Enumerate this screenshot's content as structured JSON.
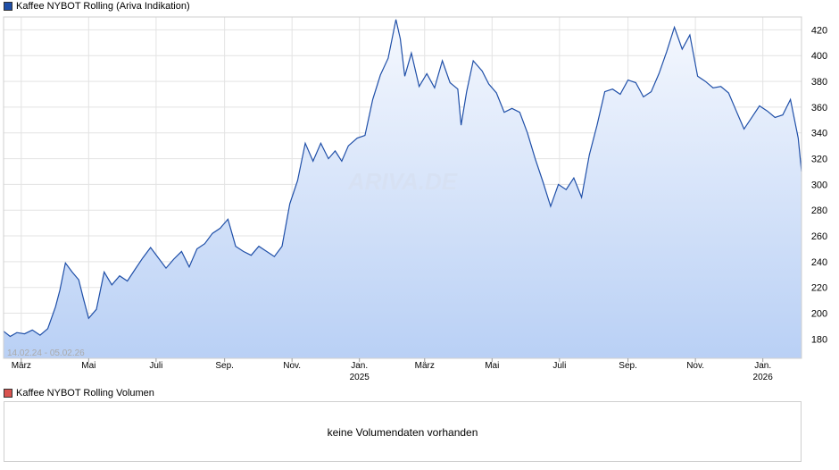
{
  "legend": {
    "main_label": "Kaffee NYBOT Rolling (Ariva Indikation)",
    "main_color": "#1f4fa8",
    "volume_label": "Kaffee NYBOT Rolling Volumen",
    "volume_color": "#d9534f"
  },
  "chart": {
    "watermark": "ARIVA.DE",
    "date_range": "14.02.24 - 05.02.26"
  },
  "volume_panel": {
    "message": "keine Volumendaten vorhanden"
  },
  "chart_data": {
    "type": "area",
    "title": "Kaffee NYBOT Rolling (Ariva Indikation)",
    "xlabel": "",
    "ylabel": "",
    "ylim": [
      165,
      430
    ],
    "yticks": [
      180,
      200,
      220,
      240,
      260,
      280,
      300,
      320,
      340,
      360,
      380,
      400,
      420
    ],
    "xlim": [
      "2024-02-14",
      "2026-02-05"
    ],
    "xticks": [
      {
        "date": "2024-03-01",
        "label": "März",
        "year": ""
      },
      {
        "date": "2024-05-01",
        "label": "Mai",
        "year": ""
      },
      {
        "date": "2024-07-01",
        "label": "Juli",
        "year": ""
      },
      {
        "date": "2024-09-01",
        "label": "Sep.",
        "year": ""
      },
      {
        "date": "2024-11-01",
        "label": "Nov.",
        "year": ""
      },
      {
        "date": "2025-01-01",
        "label": "Jan.",
        "year": "2025"
      },
      {
        "date": "2025-03-01",
        "label": "März",
        "year": ""
      },
      {
        "date": "2025-05-01",
        "label": "Mai",
        "year": ""
      },
      {
        "date": "2025-07-01",
        "label": "Juli",
        "year": ""
      },
      {
        "date": "2025-09-01",
        "label": "Sep.",
        "year": ""
      },
      {
        "date": "2025-11-01",
        "label": "Nov.",
        "year": ""
      },
      {
        "date": "2026-01-01",
        "label": "Jan.",
        "year": "2026"
      }
    ],
    "grid": true,
    "series": [
      {
        "name": "Kaffee NYBOT Rolling (Ariva Indikation)",
        "x": [
          "2024-02-14",
          "2024-02-20",
          "2024-02-26",
          "2024-03-04",
          "2024-03-11",
          "2024-03-18",
          "2024-03-25",
          "2024-04-01",
          "2024-04-05",
          "2024-04-10",
          "2024-04-16",
          "2024-04-22",
          "2024-04-26",
          "2024-05-01",
          "2024-05-08",
          "2024-05-15",
          "2024-05-22",
          "2024-05-29",
          "2024-06-05",
          "2024-06-12",
          "2024-06-19",
          "2024-06-26",
          "2024-07-03",
          "2024-07-10",
          "2024-07-17",
          "2024-07-24",
          "2024-07-31",
          "2024-08-07",
          "2024-08-14",
          "2024-08-21",
          "2024-08-28",
          "2024-09-04",
          "2024-09-11",
          "2024-09-18",
          "2024-09-25",
          "2024-10-02",
          "2024-10-09",
          "2024-10-16",
          "2024-10-23",
          "2024-10-30",
          "2024-11-06",
          "2024-11-13",
          "2024-11-20",
          "2024-11-27",
          "2024-12-04",
          "2024-12-10",
          "2024-12-16",
          "2024-12-22",
          "2024-12-30",
          "2025-01-06",
          "2025-01-13",
          "2025-01-20",
          "2025-01-27",
          "2025-02-03",
          "2025-02-07",
          "2025-02-11",
          "2025-02-17",
          "2025-02-24",
          "2025-03-03",
          "2025-03-10",
          "2025-03-17",
          "2025-03-24",
          "2025-03-31",
          "2025-04-03",
          "2025-04-08",
          "2025-04-14",
          "2025-04-22",
          "2025-04-28",
          "2025-05-05",
          "2025-05-12",
          "2025-05-19",
          "2025-05-26",
          "2025-06-02",
          "2025-06-09",
          "2025-06-16",
          "2025-06-23",
          "2025-06-30",
          "2025-07-07",
          "2025-07-14",
          "2025-07-21",
          "2025-07-28",
          "2025-08-04",
          "2025-08-11",
          "2025-08-18",
          "2025-08-25",
          "2025-09-01",
          "2025-09-08",
          "2025-09-15",
          "2025-09-22",
          "2025-09-29",
          "2025-10-06",
          "2025-10-13",
          "2025-10-20",
          "2025-10-27",
          "2025-11-03",
          "2025-11-10",
          "2025-11-17",
          "2025-11-24",
          "2025-12-01",
          "2025-12-08",
          "2025-12-15",
          "2025-12-22",
          "2025-12-29",
          "2026-01-05",
          "2026-01-12",
          "2026-01-19",
          "2026-01-26",
          "2026-02-02",
          "2026-02-05"
        ],
        "values": [
          186,
          182,
          185,
          184,
          187,
          183,
          188,
          205,
          218,
          239,
          232,
          226,
          212,
          196,
          203,
          232,
          222,
          229,
          225,
          234,
          243,
          251,
          243,
          235,
          242,
          248,
          236,
          250,
          254,
          262,
          266,
          273,
          252,
          248,
          245,
          252,
          248,
          244,
          252,
          285,
          303,
          332,
          318,
          332,
          320,
          326,
          318,
          330,
          336,
          338,
          366,
          385,
          398,
          428,
          413,
          384,
          402,
          376,
          386,
          375,
          396,
          379,
          374,
          346,
          372,
          396,
          388,
          378,
          371,
          356,
          359,
          356,
          340,
          320,
          302,
          283,
          300,
          296,
          305,
          290,
          323,
          346,
          372,
          374,
          370,
          381,
          379,
          368,
          372,
          386,
          403,
          422,
          405,
          416,
          384,
          380,
          375,
          376,
          371,
          357,
          343,
          352,
          361,
          357,
          352,
          354,
          366,
          336,
          310
        ],
        "color": "#1f4fa8"
      }
    ]
  }
}
